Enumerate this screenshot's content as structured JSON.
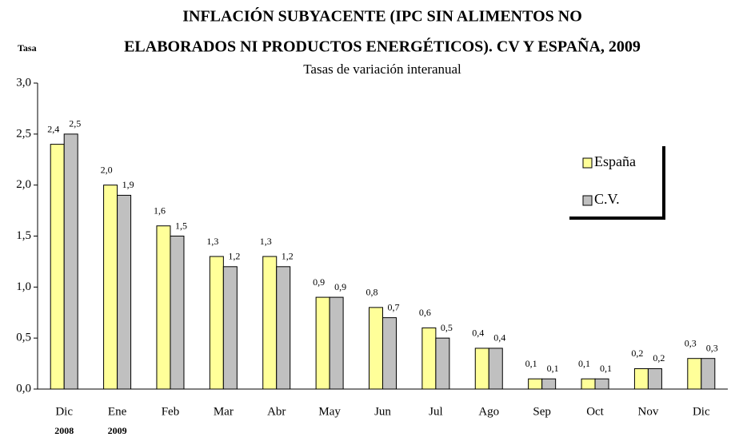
{
  "chart_data": {
    "type": "bar",
    "title": [
      "INFLACIÓN SUBYACENTE  (IPC SIN ALIMENTOS NO",
      "ELABORADOS NI PRODUCTOS ENERGÉTICOS). CV Y ESPAÑA, 2009"
    ],
    "subtitle": "Tasas de variación interanual",
    "ylabel": "Tasa",
    "categories": [
      "Dic",
      "Ene",
      "Feb",
      "Mar",
      "Abr",
      "May",
      "Jun",
      "Jul",
      "Ago",
      "Sep",
      "Oct",
      "Nov",
      "Dic"
    ],
    "category_years": [
      "2008",
      "2009",
      null,
      null,
      null,
      null,
      null,
      null,
      null,
      null,
      null,
      null,
      null
    ],
    "series": [
      {
        "name": "España",
        "color": "#ffff99",
        "values": [
          2.4,
          2.0,
          1.6,
          1.3,
          1.3,
          0.9,
          0.8,
          0.6,
          0.4,
          0.1,
          0.1,
          0.2,
          0.3
        ],
        "value_labels": [
          "2,4",
          "2,0",
          "1,6",
          "1,3",
          "1,3",
          "0,9",
          "0,8",
          "0,6",
          "0,4",
          "0,1",
          "0,1",
          "0,2",
          "0,3"
        ]
      },
      {
        "name": "C.V.",
        "color": "#c0c0c0",
        "values": [
          2.5,
          1.9,
          1.5,
          1.2,
          1.2,
          0.9,
          0.7,
          0.5,
          0.4,
          0.1,
          0.1,
          0.2,
          0.3
        ],
        "value_labels": [
          "2,5",
          "1,9",
          "1,5",
          "1,2",
          "1,2",
          "0,9",
          "0,7",
          "0,5",
          "0,4",
          "0,1",
          "0,1",
          "0,2",
          "0,3"
        ]
      }
    ],
    "ylim": [
      0,
      3
    ],
    "yticks": [
      {
        "value": 0,
        "label": "0,0"
      },
      {
        "value": 0.5,
        "label": "0,5"
      },
      {
        "value": 1,
        "label": "1,0"
      },
      {
        "value": 1.5,
        "label": "1,5"
      },
      {
        "value": 2,
        "label": "2,0"
      },
      {
        "value": 2.5,
        "label": "2,5"
      },
      {
        "value": 3,
        "label": "3,0"
      }
    ],
    "grid": false,
    "legend": "right"
  }
}
